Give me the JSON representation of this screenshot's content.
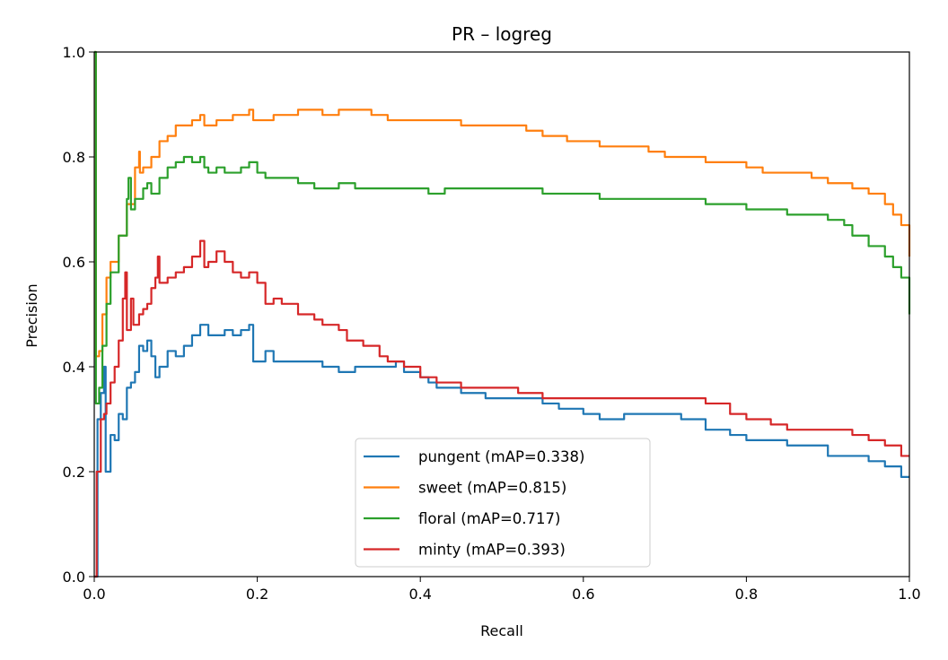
{
  "chart_data": {
    "type": "line",
    "title": "PR – logreg",
    "xlabel": "Recall",
    "ylabel": "Precision",
    "xlim": [
      0,
      1
    ],
    "ylim": [
      0,
      1
    ],
    "xticks": [
      "0.0",
      "0.2",
      "0.4",
      "0.6",
      "0.8",
      "1.0"
    ],
    "yticks": [
      "0.0",
      "0.2",
      "0.4",
      "0.6",
      "0.8",
      "1.0"
    ],
    "grid": false,
    "legend_position": "lower-center",
    "series": [
      {
        "name": "pungent (mAP=0.338)",
        "color": "#1f77b4",
        "points": [
          [
            0.0,
            0.0
          ],
          [
            0.004,
            0.3
          ],
          [
            0.008,
            0.35
          ],
          [
            0.012,
            0.4
          ],
          [
            0.014,
            0.2
          ],
          [
            0.02,
            0.27
          ],
          [
            0.025,
            0.26
          ],
          [
            0.03,
            0.31
          ],
          [
            0.035,
            0.3
          ],
          [
            0.04,
            0.36
          ],
          [
            0.045,
            0.37
          ],
          [
            0.05,
            0.39
          ],
          [
            0.055,
            0.44
          ],
          [
            0.06,
            0.43
          ],
          [
            0.065,
            0.45
          ],
          [
            0.07,
            0.42
          ],
          [
            0.075,
            0.38
          ],
          [
            0.08,
            0.4
          ],
          [
            0.09,
            0.43
          ],
          [
            0.1,
            0.42
          ],
          [
            0.11,
            0.44
          ],
          [
            0.12,
            0.46
          ],
          [
            0.13,
            0.48
          ],
          [
            0.14,
            0.46
          ],
          [
            0.16,
            0.47
          ],
          [
            0.17,
            0.46
          ],
          [
            0.18,
            0.47
          ],
          [
            0.19,
            0.48
          ],
          [
            0.195,
            0.41
          ],
          [
            0.21,
            0.43
          ],
          [
            0.22,
            0.41
          ],
          [
            0.25,
            0.41
          ],
          [
            0.28,
            0.4
          ],
          [
            0.3,
            0.39
          ],
          [
            0.32,
            0.4
          ],
          [
            0.35,
            0.4
          ],
          [
            0.37,
            0.41
          ],
          [
            0.38,
            0.39
          ],
          [
            0.4,
            0.38
          ],
          [
            0.41,
            0.37
          ],
          [
            0.42,
            0.36
          ],
          [
            0.45,
            0.35
          ],
          [
            0.48,
            0.34
          ],
          [
            0.5,
            0.34
          ],
          [
            0.55,
            0.33
          ],
          [
            0.57,
            0.32
          ],
          [
            0.6,
            0.31
          ],
          [
            0.62,
            0.3
          ],
          [
            0.65,
            0.31
          ],
          [
            0.7,
            0.31
          ],
          [
            0.72,
            0.3
          ],
          [
            0.75,
            0.28
          ],
          [
            0.78,
            0.27
          ],
          [
            0.8,
            0.26
          ],
          [
            0.85,
            0.25
          ],
          [
            0.9,
            0.23
          ],
          [
            0.93,
            0.23
          ],
          [
            0.95,
            0.22
          ],
          [
            0.97,
            0.21
          ],
          [
            0.99,
            0.19
          ],
          [
            1.0,
            0.19
          ]
        ]
      },
      {
        "name": "sweet (mAP=0.815)",
        "color": "#ff7f0e",
        "points": [
          [
            0.0,
            1.0
          ],
          [
            0.002,
            0.42
          ],
          [
            0.006,
            0.43
          ],
          [
            0.01,
            0.5
          ],
          [
            0.015,
            0.57
          ],
          [
            0.02,
            0.6
          ],
          [
            0.03,
            0.65
          ],
          [
            0.04,
            0.71
          ],
          [
            0.05,
            0.78
          ],
          [
            0.055,
            0.81
          ],
          [
            0.056,
            0.77
          ],
          [
            0.06,
            0.78
          ],
          [
            0.07,
            0.8
          ],
          [
            0.08,
            0.83
          ],
          [
            0.09,
            0.84
          ],
          [
            0.1,
            0.86
          ],
          [
            0.11,
            0.86
          ],
          [
            0.12,
            0.87
          ],
          [
            0.13,
            0.88
          ],
          [
            0.135,
            0.86
          ],
          [
            0.15,
            0.87
          ],
          [
            0.17,
            0.88
          ],
          [
            0.19,
            0.89
          ],
          [
            0.195,
            0.87
          ],
          [
            0.22,
            0.88
          ],
          [
            0.25,
            0.89
          ],
          [
            0.27,
            0.89
          ],
          [
            0.28,
            0.88
          ],
          [
            0.3,
            0.89
          ],
          [
            0.33,
            0.89
          ],
          [
            0.34,
            0.88
          ],
          [
            0.36,
            0.87
          ],
          [
            0.38,
            0.87
          ],
          [
            0.4,
            0.87
          ],
          [
            0.42,
            0.87
          ],
          [
            0.45,
            0.86
          ],
          [
            0.48,
            0.86
          ],
          [
            0.5,
            0.86
          ],
          [
            0.53,
            0.85
          ],
          [
            0.55,
            0.84
          ],
          [
            0.58,
            0.83
          ],
          [
            0.6,
            0.83
          ],
          [
            0.62,
            0.82
          ],
          [
            0.65,
            0.82
          ],
          [
            0.68,
            0.81
          ],
          [
            0.7,
            0.8
          ],
          [
            0.73,
            0.8
          ],
          [
            0.75,
            0.79
          ],
          [
            0.78,
            0.79
          ],
          [
            0.8,
            0.78
          ],
          [
            0.82,
            0.77
          ],
          [
            0.85,
            0.77
          ],
          [
            0.88,
            0.76
          ],
          [
            0.9,
            0.75
          ],
          [
            0.93,
            0.74
          ],
          [
            0.95,
            0.73
          ],
          [
            0.97,
            0.71
          ],
          [
            0.98,
            0.69
          ],
          [
            0.99,
            0.67
          ],
          [
            1.0,
            0.61
          ]
        ]
      },
      {
        "name": "floral (mAP=0.717)",
        "color": "#2ca02c",
        "points": [
          [
            0.0,
            1.0
          ],
          [
            0.002,
            0.33
          ],
          [
            0.006,
            0.36
          ],
          [
            0.01,
            0.44
          ],
          [
            0.015,
            0.52
          ],
          [
            0.02,
            0.58
          ],
          [
            0.03,
            0.65
          ],
          [
            0.04,
            0.72
          ],
          [
            0.042,
            0.76
          ],
          [
            0.045,
            0.7
          ],
          [
            0.05,
            0.72
          ],
          [
            0.055,
            0.72
          ],
          [
            0.06,
            0.74
          ],
          [
            0.065,
            0.75
          ],
          [
            0.07,
            0.73
          ],
          [
            0.08,
            0.76
          ],
          [
            0.09,
            0.78
          ],
          [
            0.1,
            0.79
          ],
          [
            0.11,
            0.8
          ],
          [
            0.12,
            0.79
          ],
          [
            0.13,
            0.8
          ],
          [
            0.135,
            0.78
          ],
          [
            0.14,
            0.77
          ],
          [
            0.15,
            0.78
          ],
          [
            0.16,
            0.77
          ],
          [
            0.18,
            0.78
          ],
          [
            0.19,
            0.79
          ],
          [
            0.2,
            0.77
          ],
          [
            0.21,
            0.76
          ],
          [
            0.23,
            0.76
          ],
          [
            0.25,
            0.75
          ],
          [
            0.27,
            0.74
          ],
          [
            0.3,
            0.75
          ],
          [
            0.32,
            0.74
          ],
          [
            0.35,
            0.74
          ],
          [
            0.37,
            0.74
          ],
          [
            0.4,
            0.74
          ],
          [
            0.41,
            0.73
          ],
          [
            0.43,
            0.74
          ],
          [
            0.45,
            0.74
          ],
          [
            0.5,
            0.74
          ],
          [
            0.55,
            0.73
          ],
          [
            0.6,
            0.73
          ],
          [
            0.62,
            0.72
          ],
          [
            0.65,
            0.72
          ],
          [
            0.7,
            0.72
          ],
          [
            0.73,
            0.72
          ],
          [
            0.75,
            0.71
          ],
          [
            0.78,
            0.71
          ],
          [
            0.8,
            0.7
          ],
          [
            0.82,
            0.7
          ],
          [
            0.85,
            0.69
          ],
          [
            0.88,
            0.69
          ],
          [
            0.9,
            0.68
          ],
          [
            0.92,
            0.67
          ],
          [
            0.93,
            0.65
          ],
          [
            0.95,
            0.63
          ],
          [
            0.97,
            0.61
          ],
          [
            0.98,
            0.59
          ],
          [
            0.99,
            0.57
          ],
          [
            1.0,
            0.5
          ]
        ]
      },
      {
        "name": "minty (mAP=0.393)",
        "color": "#d62728",
        "points": [
          [
            0.0,
            0.0
          ],
          [
            0.003,
            0.2
          ],
          [
            0.008,
            0.3
          ],
          [
            0.012,
            0.31
          ],
          [
            0.015,
            0.33
          ],
          [
            0.02,
            0.37
          ],
          [
            0.025,
            0.4
          ],
          [
            0.03,
            0.45
          ],
          [
            0.035,
            0.53
          ],
          [
            0.038,
            0.58
          ],
          [
            0.04,
            0.47
          ],
          [
            0.045,
            0.53
          ],
          [
            0.048,
            0.48
          ],
          [
            0.055,
            0.5
          ],
          [
            0.06,
            0.51
          ],
          [
            0.065,
            0.52
          ],
          [
            0.07,
            0.55
          ],
          [
            0.075,
            0.57
          ],
          [
            0.078,
            0.61
          ],
          [
            0.08,
            0.56
          ],
          [
            0.09,
            0.57
          ],
          [
            0.1,
            0.58
          ],
          [
            0.11,
            0.59
          ],
          [
            0.12,
            0.61
          ],
          [
            0.13,
            0.64
          ],
          [
            0.135,
            0.59
          ],
          [
            0.14,
            0.6
          ],
          [
            0.15,
            0.62
          ],
          [
            0.16,
            0.6
          ],
          [
            0.17,
            0.58
          ],
          [
            0.18,
            0.57
          ],
          [
            0.19,
            0.58
          ],
          [
            0.2,
            0.56
          ],
          [
            0.21,
            0.52
          ],
          [
            0.22,
            0.53
          ],
          [
            0.23,
            0.52
          ],
          [
            0.25,
            0.5
          ],
          [
            0.27,
            0.49
          ],
          [
            0.28,
            0.48
          ],
          [
            0.3,
            0.47
          ],
          [
            0.31,
            0.45
          ],
          [
            0.33,
            0.44
          ],
          [
            0.35,
            0.42
          ],
          [
            0.36,
            0.41
          ],
          [
            0.38,
            0.4
          ],
          [
            0.4,
            0.38
          ],
          [
            0.42,
            0.37
          ],
          [
            0.45,
            0.36
          ],
          [
            0.48,
            0.36
          ],
          [
            0.5,
            0.36
          ],
          [
            0.52,
            0.35
          ],
          [
            0.55,
            0.34
          ],
          [
            0.6,
            0.34
          ],
          [
            0.65,
            0.34
          ],
          [
            0.7,
            0.34
          ],
          [
            0.72,
            0.34
          ],
          [
            0.75,
            0.33
          ],
          [
            0.78,
            0.31
          ],
          [
            0.8,
            0.3
          ],
          [
            0.83,
            0.29
          ],
          [
            0.85,
            0.28
          ],
          [
            0.88,
            0.28
          ],
          [
            0.9,
            0.28
          ],
          [
            0.93,
            0.27
          ],
          [
            0.95,
            0.26
          ],
          [
            0.97,
            0.25
          ],
          [
            0.99,
            0.23
          ],
          [
            1.0,
            0.23
          ]
        ]
      }
    ]
  }
}
